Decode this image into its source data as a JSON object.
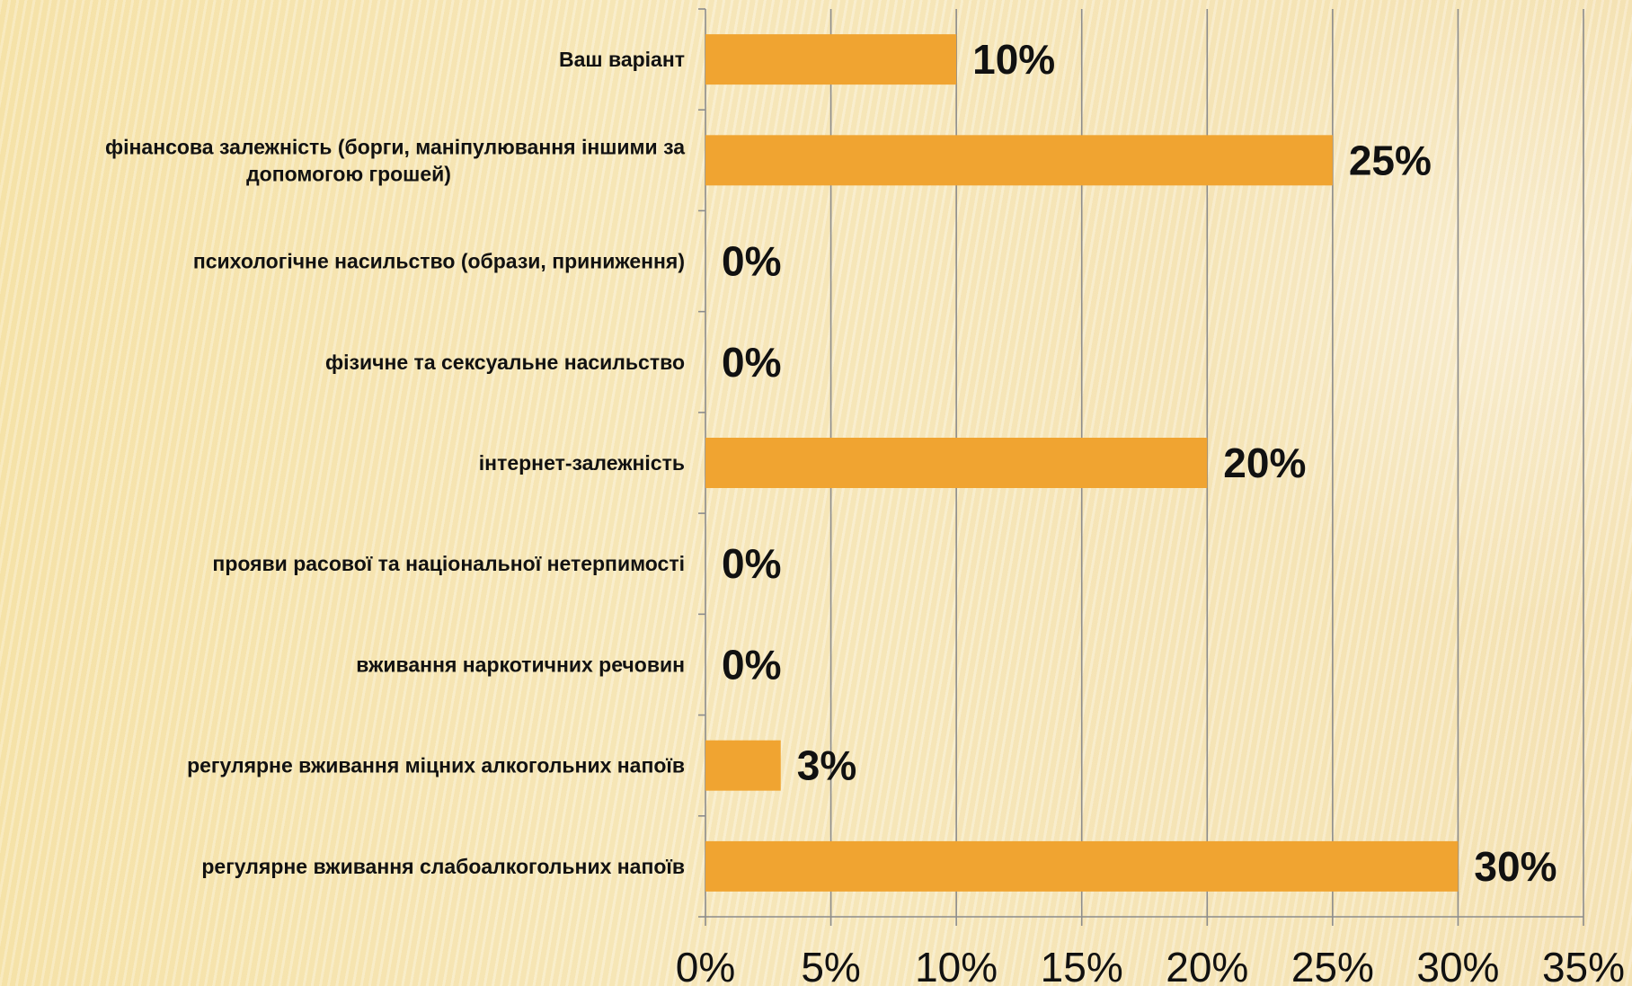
{
  "chart_data": {
    "type": "bar",
    "orientation": "horizontal",
    "categories": [
      [
        "Ваш варіант"
      ],
      [
        "фінансова залежність (борги, маніпулювання іншими за",
        "допомогою грошей)"
      ],
      [
        "психологічне насильство (образи, приниження)"
      ],
      [
        "фізичне та сексуальне насильство"
      ],
      [
        "інтернет-залежність"
      ],
      [
        "прояви расової та національної нетерпимості"
      ],
      [
        "вживання наркотичних речовин"
      ],
      [
        "регулярне вживання міцних алкогольних напоїв"
      ],
      [
        "регулярне вживання слабоалкогольних напоїв"
      ]
    ],
    "values": [
      10,
      25,
      0,
      0,
      20,
      0,
      0,
      3,
      30
    ],
    "data_labels": [
      "10%",
      "25%",
      "0%",
      "0%",
      "20%",
      "0%",
      "0%",
      "3%",
      "30%"
    ],
    "xlim": [
      0,
      35
    ],
    "x_ticks": [
      0,
      5,
      10,
      15,
      20,
      25,
      30,
      35
    ],
    "x_tick_labels": [
      "0%",
      "5%",
      "10%",
      "15%",
      "20%",
      "25%",
      "30%",
      "35%"
    ],
    "grid": "vertical",
    "bar_color": "#F0A431",
    "title": "",
    "xlabel": "",
    "ylabel": ""
  }
}
